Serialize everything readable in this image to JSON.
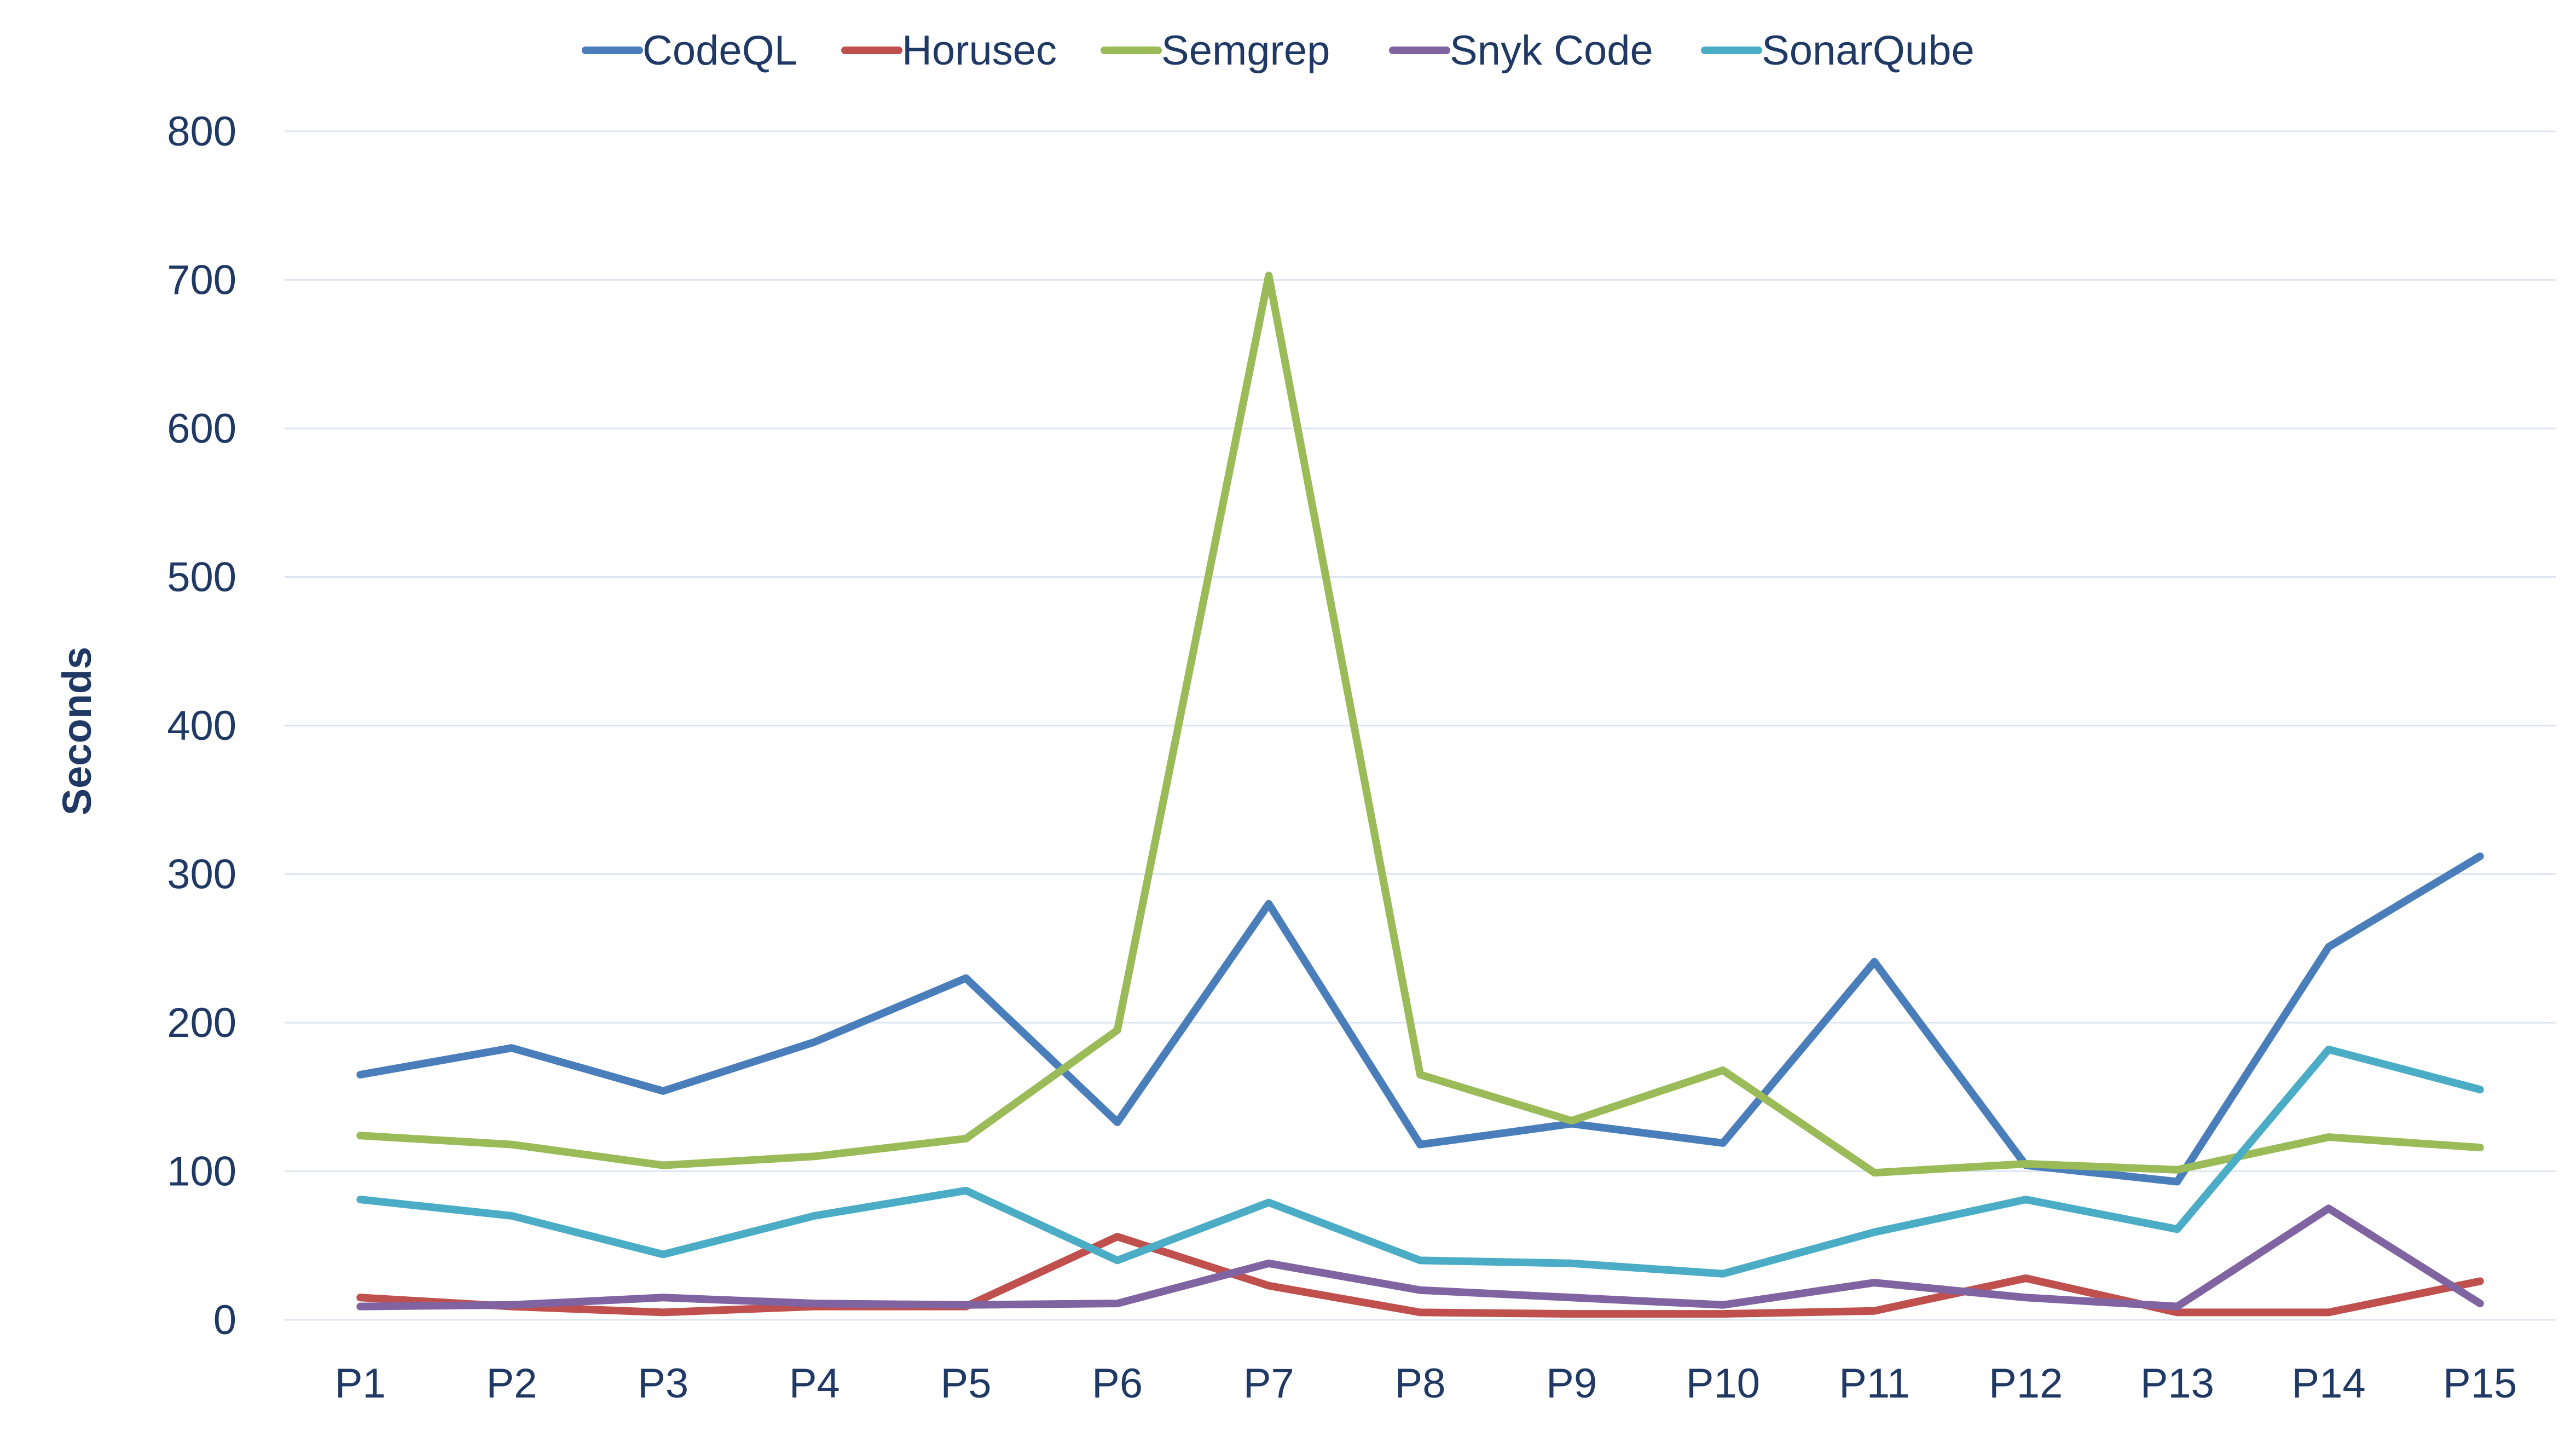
{
  "chart_data": {
    "type": "line",
    "title": "",
    "xlabel": "",
    "ylabel": "Seconds",
    "ylim": [
      0,
      800
    ],
    "yticks": [
      0,
      100,
      200,
      300,
      400,
      500,
      600,
      700,
      800
    ],
    "grid": true,
    "legend": "top",
    "categories": [
      "P1",
      "P2",
      "P3",
      "P4",
      "P5",
      "P6",
      "P7",
      "P8",
      "P9",
      "P10",
      "P11",
      "P12",
      "P13",
      "P14",
      "P15"
    ],
    "series": [
      {
        "name": "CodeQL",
        "color": "#4a7ebb",
        "values": [
          165,
          183,
          154,
          187,
          230,
          133,
          280,
          118,
          132,
          119,
          241,
          104,
          93,
          251,
          312
        ]
      },
      {
        "name": "Horusec",
        "color": "#c0504d",
        "values": [
          15,
          9,
          5,
          9,
          9,
          56,
          23,
          5,
          4,
          4,
          6,
          28,
          5,
          5,
          26
        ]
      },
      {
        "name": "Semgrep",
        "color": "#9bbb59",
        "values": [
          124,
          118,
          104,
          110,
          122,
          195,
          703,
          165,
          134,
          168,
          99,
          105,
          101,
          123,
          116
        ]
      },
      {
        "name": "Snyk Code",
        "color": "#8064a2",
        "values": [
          9,
          10,
          15,
          11,
          10,
          11,
          38,
          20,
          15,
          10,
          25,
          15,
          9,
          75,
          11
        ]
      },
      {
        "name": "SonarQube",
        "color": "#4bacc6",
        "values": [
          81,
          70,
          44,
          70,
          87,
          40,
          79,
          40,
          38,
          31,
          59,
          81,
          61,
          182,
          155
        ]
      }
    ]
  }
}
